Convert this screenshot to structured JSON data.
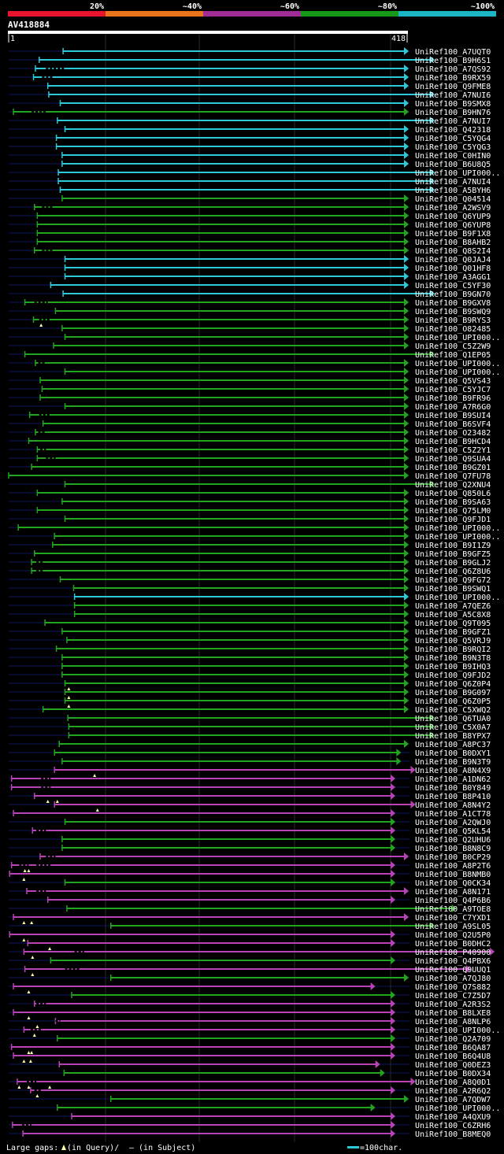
{
  "chart_data": {
    "type": "alignment-overview",
    "query_id": "AV418884",
    "query_start": "1",
    "query_end": "418",
    "identity_bins": [
      {
        "label": "20%",
        "color": "#e8132d"
      },
      {
        "label": "~40%",
        "color": "#e8741c"
      },
      {
        "label": "~60%",
        "color": "#a02c96"
      },
      {
        "label": "~80%",
        "color": "#189818"
      },
      {
        "label": "~100%",
        "color": "#1ab4c4"
      }
    ],
    "colors": {
      "cyan": "#2ec9d8",
      "green": "#22a41f",
      "magenta": "#b743b6",
      "background": "#000000",
      "row_line": "#0c1860"
    },
    "legend": {
      "gaps_prefix": "Large gaps:",
      "gaps_query": "(in Query)/",
      "gaps_subject": "(in Subject)",
      "scale": "=100char."
    },
    "hits": [
      {
        "label": "UniRef100_A7UQT0",
        "s": 58,
        "e": 420,
        "c": "c"
      },
      {
        "label": "UniRef100_B9H6S1",
        "s": 33,
        "e": 447,
        "c": "c"
      },
      {
        "label": "UniRef100_A7QS92",
        "s": 29,
        "e": 420,
        "c": "c",
        "gaps": [
          [
            40,
            60
          ]
        ]
      },
      {
        "label": "UniRef100_B9RX59",
        "s": 27,
        "e": 420,
        "c": "c",
        "gaps": [
          [
            36,
            48
          ]
        ]
      },
      {
        "label": "UniRef100_Q9FME8",
        "s": 42,
        "e": 420,
        "c": "c"
      },
      {
        "label": "UniRef100_A7NUI6",
        "s": 43,
        "e": 447,
        "c": "c"
      },
      {
        "label": "UniRef100_B9SMX8",
        "s": 55,
        "e": 420,
        "c": "c"
      },
      {
        "label": "UniRef100_B9HN76",
        "s": 6,
        "e": 420,
        "c": "g",
        "gaps": [
          [
            25,
            40
          ]
        ]
      },
      {
        "label": "UniRef100_A7NUI7",
        "s": 52,
        "e": 447,
        "c": "c"
      },
      {
        "label": "UniRef100_Q42318",
        "s": 60,
        "e": 420,
        "c": "c"
      },
      {
        "label": "UniRef100_C5YQG4",
        "s": 51,
        "e": 420,
        "c": "c"
      },
      {
        "label": "UniRef100_C5YQG3",
        "s": 51,
        "e": 420,
        "c": "c"
      },
      {
        "label": "UniRef100_C0HIN0",
        "s": 57,
        "e": 420,
        "c": "c"
      },
      {
        "label": "UniRef100_B6U8Q5",
        "s": 57,
        "e": 420,
        "c": "c"
      },
      {
        "label": "UniRef100_UPI000..",
        "s": 53,
        "e": 447,
        "c": "c"
      },
      {
        "label": "UniRef100_A7NUI4",
        "s": 53,
        "e": 447,
        "c": "c"
      },
      {
        "label": "UniRef100_A5BYH6",
        "s": 55,
        "e": 447,
        "c": "c"
      },
      {
        "label": "UniRef100_Q04514",
        "s": 57,
        "e": 420,
        "c": "g"
      },
      {
        "label": "UniRef100_A2WSV9",
        "s": 28,
        "e": 420,
        "c": "g",
        "gaps": [
          [
            36,
            48
          ]
        ]
      },
      {
        "label": "UniRef100_Q6YUP9",
        "s": 31,
        "e": 420,
        "c": "g"
      },
      {
        "label": "UniRef100_Q6YUP8",
        "s": 31,
        "e": 420,
        "c": "g"
      },
      {
        "label": "UniRef100_B9F1X8",
        "s": 31,
        "e": 420,
        "c": "g"
      },
      {
        "label": "UniRef100_B8AHB2",
        "s": 31,
        "e": 420,
        "c": "g"
      },
      {
        "label": "UniRef100_Q8S2I4",
        "s": 28,
        "e": 420,
        "c": "g",
        "gaps": [
          [
            36,
            48
          ]
        ]
      },
      {
        "label": "UniRef100_Q0JAJ4",
        "s": 60,
        "e": 420,
        "c": "c"
      },
      {
        "label": "UniRef100_Q01HF8",
        "s": 60,
        "e": 420,
        "c": "c"
      },
      {
        "label": "UniRef100_A3AGG1",
        "s": 60,
        "e": 420,
        "c": "c"
      },
      {
        "label": "UniRef100_C5YF30",
        "s": 45,
        "e": 420,
        "c": "c"
      },
      {
        "label": "UniRef100_B9GN70",
        "s": 58,
        "e": 447,
        "c": "c"
      },
      {
        "label": "UniRef100_B9GXV8",
        "s": 18,
        "e": 420,
        "c": "g",
        "gaps": [
          [
            28,
            42
          ]
        ]
      },
      {
        "label": "UniRef100_B9SWQ9",
        "s": 50,
        "e": 420,
        "c": "g"
      },
      {
        "label": "UniRef100_B9RYS3",
        "s": 27,
        "e": 420,
        "c": "g",
        "gaps": [
          [
            33,
            45
          ]
        ],
        "marks": [
          35
        ]
      },
      {
        "label": "UniRef100_O82485",
        "s": 57,
        "e": 420,
        "c": "g"
      },
      {
        "label": "UniRef100_UPI000..",
        "s": 60,
        "e": 420,
        "c": "g"
      },
      {
        "label": "UniRef100_C5Z2W9",
        "s": 48,
        "e": 420,
        "c": "g"
      },
      {
        "label": "UniRef100_Q1EP05",
        "s": 18,
        "e": 447,
        "c": "g"
      },
      {
        "label": "UniRef100_UPI000..",
        "s": 29,
        "e": 420,
        "c": "g",
        "gaps": [
          [
            32,
            40
          ]
        ]
      },
      {
        "label": "UniRef100_UPI000..",
        "s": 60,
        "e": 420,
        "c": "g"
      },
      {
        "label": "UniRef100_Q5VS43",
        "s": 34,
        "e": 420,
        "c": "g"
      },
      {
        "label": "UniRef100_C5YJC7",
        "s": 36,
        "e": 420,
        "c": "g"
      },
      {
        "label": "UniRef100_B9FR96",
        "s": 34,
        "e": 420,
        "c": "g"
      },
      {
        "label": "UniRef100_A7R6G0",
        "s": 60,
        "e": 420,
        "c": "g"
      },
      {
        "label": "UniRef100_B9SUI4",
        "s": 23,
        "e": 420,
        "c": "g",
        "gaps": [
          [
            33,
            45
          ]
        ]
      },
      {
        "label": "UniRef100_B6SVF4",
        "s": 37,
        "e": 420,
        "c": "g"
      },
      {
        "label": "UniRef100_O23482",
        "s": 29,
        "e": 420,
        "c": "g",
        "gaps": [
          [
            32,
            40
          ]
        ]
      },
      {
        "label": "UniRef100_B9HCD4",
        "s": 22,
        "e": 420,
        "c": "g"
      },
      {
        "label": "UniRef100_C5Z2Y1",
        "s": 31,
        "e": 420,
        "c": "g",
        "gaps": [
          [
            34,
            40
          ]
        ]
      },
      {
        "label": "UniRef100_Q9SUA4",
        "s": 31,
        "e": 420,
        "c": "g",
        "gaps": [
          [
            40,
            50
          ]
        ]
      },
      {
        "label": "UniRef100_B9GZ01",
        "s": 25,
        "e": 420,
        "c": "g"
      },
      {
        "label": "UniRef100_Q7FU78",
        "s": 1,
        "e": 420,
        "c": "g"
      },
      {
        "label": "UniRef100_Q2XNU4",
        "s": 60,
        "e": 447,
        "c": "g"
      },
      {
        "label": "UniRef100_Q850L6",
        "s": 31,
        "e": 420,
        "c": "g"
      },
      {
        "label": "UniRef100_B9SA63",
        "s": 57,
        "e": 420,
        "c": "g"
      },
      {
        "label": "UniRef100_Q75LM0",
        "s": 31,
        "e": 420,
        "c": "g"
      },
      {
        "label": "UniRef100_Q9FJD1",
        "s": 60,
        "e": 420,
        "c": "g"
      },
      {
        "label": "UniRef100_UPI000..",
        "s": 11,
        "e": 420,
        "c": "g"
      },
      {
        "label": "UniRef100_UPI000..",
        "s": 49,
        "e": 420,
        "c": "g"
      },
      {
        "label": "UniRef100_B9I1Z9",
        "s": 47,
        "e": 420,
        "c": "g"
      },
      {
        "label": "UniRef100_B9GFZ5",
        "s": 28,
        "e": 420,
        "c": "g"
      },
      {
        "label": "UniRef100_B9GLJ2",
        "s": 25,
        "e": 420,
        "c": "g",
        "gaps": [
          [
            30,
            38
          ]
        ]
      },
      {
        "label": "UniRef100_Q6Z8U6",
        "s": 25,
        "e": 420,
        "c": "g",
        "gaps": [
          [
            30,
            38
          ]
        ]
      },
      {
        "label": "UniRef100_Q9FG72",
        "s": 55,
        "e": 420,
        "c": "g"
      },
      {
        "label": "UniRef100_B9SWQ1",
        "s": 69,
        "e": 420,
        "c": "g"
      },
      {
        "label": "UniRef100_UPI000..",
        "s": 70,
        "e": 420,
        "c": "c"
      },
      {
        "label": "UniRef100_A7QEZ6",
        "s": 70,
        "e": 420,
        "c": "g"
      },
      {
        "label": "UniRef100_A5C8X8",
        "s": 70,
        "e": 420,
        "c": "g"
      },
      {
        "label": "UniRef100_Q9T095",
        "s": 39,
        "e": 420,
        "c": "g"
      },
      {
        "label": "UniRef100_B9GFZ1",
        "s": 57,
        "e": 420,
        "c": "g"
      },
      {
        "label": "UniRef100_Q5VRJ9",
        "s": 62,
        "e": 420,
        "c": "g"
      },
      {
        "label": "UniRef100_B9RQI2",
        "s": 51,
        "e": 420,
        "c": "g"
      },
      {
        "label": "UniRef100_B9N3T8",
        "s": 57,
        "e": 420,
        "c": "g"
      },
      {
        "label": "UniRef100_B9IHQ3",
        "s": 57,
        "e": 420,
        "c": "g"
      },
      {
        "label": "UniRef100_Q9FJD2",
        "s": 57,
        "e": 420,
        "c": "g"
      },
      {
        "label": "UniRef100_Q6Z0P4",
        "s": 60,
        "e": 420,
        "c": "g",
        "marks": [
          64
        ]
      },
      {
        "label": "UniRef100_B9G097",
        "s": 60,
        "e": 420,
        "c": "g",
        "marks": [
          64
        ]
      },
      {
        "label": "UniRef100_Q6Z0P5",
        "s": 60,
        "e": 420,
        "c": "g",
        "marks": [
          64
        ]
      },
      {
        "label": "UniRef100_C5XWQ2",
        "s": 37,
        "e": 420,
        "c": "g"
      },
      {
        "label": "UniRef100_Q6TUA0",
        "s": 63,
        "e": 447,
        "c": "g"
      },
      {
        "label": "UniRef100_C5X0A7",
        "s": 64,
        "e": 447,
        "c": "g"
      },
      {
        "label": "UniRef100_B8YPX7",
        "s": 64,
        "e": 447,
        "c": "g"
      },
      {
        "label": "UniRef100_A8PC37",
        "s": 54,
        "e": 420,
        "c": "g"
      },
      {
        "label": "UniRef100_B0DXY1",
        "s": 49,
        "e": 412,
        "c": "g"
      },
      {
        "label": "UniRef100_B9N3T9",
        "s": 57,
        "e": 412,
        "c": "g"
      },
      {
        "label": "UniRef100_A8N4X9",
        "s": 49,
        "e": 427,
        "c": "m",
        "marks": [
          91
        ]
      },
      {
        "label": "UniRef100_A1DN62",
        "s": 4,
        "e": 406,
        "c": "m",
        "gaps": [
          [
            35,
            45
          ]
        ]
      },
      {
        "label": "UniRef100_B0Y849",
        "s": 4,
        "e": 406,
        "c": "m",
        "gaps": [
          [
            35,
            45
          ]
        ]
      },
      {
        "label": "UniRef100_B8P410",
        "s": 28,
        "e": 406,
        "c": "m",
        "marks": [
          42,
          52
        ]
      },
      {
        "label": "UniRef100_A8N4Y2",
        "s": 49,
        "e": 427,
        "c": "m",
        "marks": [
          94
        ]
      },
      {
        "label": "UniRef100_A1CT78",
        "s": 6,
        "e": 406,
        "c": "m"
      },
      {
        "label": "UniRef100_A2QWJ0",
        "s": 60,
        "e": 406,
        "c": "g"
      },
      {
        "label": "UniRef100_Q5KL54",
        "s": 26,
        "e": 406,
        "c": "m",
        "gaps": [
          [
            30,
            40
          ]
        ]
      },
      {
        "label": "UniRef100_Q2UHU6",
        "s": 57,
        "e": 406,
        "c": "g"
      },
      {
        "label": "UniRef100_B8N8C9",
        "s": 57,
        "e": 406,
        "c": "g"
      },
      {
        "label": "UniRef100_B0CP29",
        "s": 34,
        "e": 420,
        "c": "m",
        "gaps": [
          [
            40,
            50
          ]
        ]
      },
      {
        "label": "UniRef100_A8P2T6",
        "s": 4,
        "e": 406,
        "c": "m",
        "gaps": [
          [
            12,
            22
          ],
          [
            30,
            45
          ]
        ],
        "marks": [
          18,
          22
        ]
      },
      {
        "label": "UniRef100_B8NMB0",
        "s": 2,
        "e": 406,
        "c": "m",
        "marks": [
          17
        ]
      },
      {
        "label": "UniRef100_Q0CK34",
        "s": 60,
        "e": 406,
        "c": "g"
      },
      {
        "label": "UniRef100_A8N171",
        "s": 20,
        "e": 420,
        "c": "m",
        "gaps": [
          [
            30,
            40
          ]
        ]
      },
      {
        "label": "UniRef100_Q4P6B6",
        "s": 42,
        "e": 406,
        "c": "m"
      },
      {
        "label": "UniRef100_A9TOE8",
        "s": 62,
        "e": 470,
        "c": "g"
      },
      {
        "label": "UniRef100_C7YXD1",
        "s": 6,
        "e": 420,
        "c": "m",
        "marks": [
          17,
          25
        ]
      },
      {
        "label": "UniRef100_A9SL05",
        "s": 108,
        "e": 447,
        "c": "g"
      },
      {
        "label": "UniRef100_Q2U5P0",
        "s": 2,
        "e": 406,
        "c": "m",
        "marks": [
          17
        ]
      },
      {
        "label": "UniRef100_B0DHC2",
        "s": 21,
        "e": 406,
        "c": "m",
        "marks": [
          44
        ]
      },
      {
        "label": "UniRef100_P40900",
        "s": 17,
        "e": 510,
        "c": "m",
        "gaps": [
          [
            70,
            80
          ]
        ],
        "marks": [
          26
        ]
      },
      {
        "label": "UniRef100_Q4PBX6",
        "s": 45,
        "e": 406,
        "c": "g"
      },
      {
        "label": "UniRef100_Q9UUQ1",
        "s": 18,
        "e": 485,
        "c": "m",
        "gaps": [
          [
            60,
            75
          ]
        ],
        "marks": [
          26
        ]
      },
      {
        "label": "UniRef100_A7QJ80",
        "s": 108,
        "e": 420,
        "c": "g"
      },
      {
        "label": "UniRef100_Q7S882",
        "s": 6,
        "e": 385,
        "c": "m",
        "marks": [
          22
        ]
      },
      {
        "label": "UniRef100_C7Z5D7",
        "s": 67,
        "e": 406,
        "c": "g"
      },
      {
        "label": "UniRef100_A2R3S2",
        "s": 28,
        "e": 406,
        "c": "m",
        "gaps": [
          [
            30,
            40
          ]
        ]
      },
      {
        "label": "UniRef100_B8LXE8",
        "s": 6,
        "e": 406,
        "c": "m",
        "marks": [
          22
        ]
      },
      {
        "label": "UniRef100_A8NLP6",
        "s": 50,
        "e": 406,
        "c": "m",
        "gaps": [
          [
            50,
            55
          ]
        ],
        "marks": [
          31
        ]
      },
      {
        "label": "UniRef100_UPI000..",
        "s": 17,
        "e": 406,
        "c": "m",
        "gaps": [
          [
            24,
            35
          ]
        ],
        "marks": [
          28
        ]
      },
      {
        "label": "UniRef100_Q2A709",
        "s": 52,
        "e": 406,
        "c": "g"
      },
      {
        "label": "UniRef100_B6QA87",
        "s": 4,
        "e": 406,
        "c": "m",
        "marks": [
          22,
          25
        ]
      },
      {
        "label": "UniRef100_B6Q4U8",
        "s": 6,
        "e": 406,
        "c": "m",
        "marks": [
          17,
          24
        ]
      },
      {
        "label": "UniRef100_Q0DEZ3",
        "s": 54,
        "e": 390,
        "c": "m"
      },
      {
        "label": "UniRef100_B0DX34",
        "s": 59,
        "e": 395,
        "c": "g"
      },
      {
        "label": "UniRef100_A8Q0D1",
        "s": 10,
        "e": 427,
        "c": "m",
        "gaps": [
          [
            20,
            30
          ]
        ],
        "marks": [
          12,
          22,
          44
        ]
      },
      {
        "label": "UniRef100_A2R6Q2",
        "s": 24,
        "e": 406,
        "c": "m",
        "gaps": [
          [
            28,
            35
          ]
        ],
        "marks": [
          31
        ]
      },
      {
        "label": "UniRef100_A7QDW7",
        "s": 108,
        "e": 420,
        "c": "g"
      },
      {
        "label": "UniRef100_UPI000..",
        "s": 52,
        "e": 385,
        "c": "g"
      },
      {
        "label": "UniRef100_A4QXU9",
        "s": 67,
        "e": 406,
        "c": "m"
      },
      {
        "label": "UniRef100_C6ZRH6",
        "s": 5,
        "e": 406,
        "c": "m",
        "gaps": [
          [
            15,
            25
          ]
        ]
      },
      {
        "label": "UniRef100_B8MEQ0",
        "s": 16,
        "e": 406,
        "c": "m"
      }
    ]
  }
}
